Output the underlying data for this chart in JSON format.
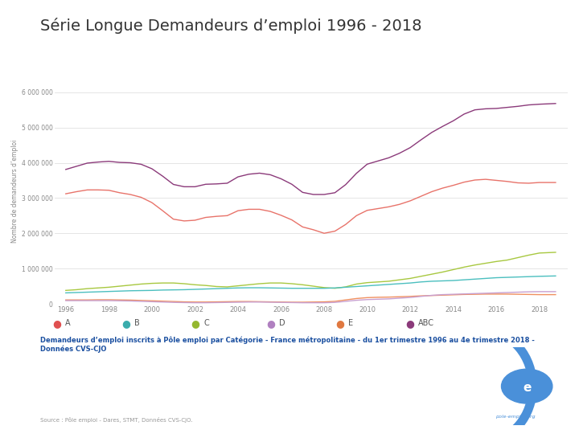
{
  "title": "Série Longue Demandeurs d’emploi 1996 - 2018",
  "ylabel": "Nombre de demandeurs d’emploi",
  "subtitle": "Demandeurs d’emploi inscrits à Pôle emploi par Catégorie - France métropolitaine - du 1er trimestre 1996 au 4e trimestre 2018 -\nDonnées CVS-CJO",
  "source": "Source : Pôle emploi - Dares, STMT, Données CVS-CJO.",
  "yticks": [
    0,
    1000000,
    2000000,
    3000000,
    4000000,
    5000000,
    6000000
  ],
  "ytick_labels": [
    "0",
    "1 000 000",
    "2 000 000",
    "3 000 000",
    "4 000 000",
    "5 000 000",
    "6 000 000"
  ],
  "xtick_years": [
    1996,
    1998,
    2000,
    2002,
    2004,
    2006,
    2008,
    2010,
    2012,
    2014,
    2016,
    2018
  ],
  "ylim": [
    0,
    6400000
  ],
  "series": {
    "A": {
      "color": "#E8736A",
      "data_x": [
        1996,
        1996.5,
        1997,
        1997.5,
        1998,
        1998.5,
        1999,
        1999.5,
        2000,
        2000.5,
        2001,
        2001.5,
        2002,
        2002.5,
        2003,
        2003.5,
        2004,
        2004.5,
        2005,
        2005.5,
        2006,
        2006.5,
        2007,
        2007.5,
        2008,
        2008.5,
        2009,
        2009.5,
        2010,
        2010.5,
        2011,
        2011.5,
        2012,
        2012.5,
        2013,
        2013.5,
        2014,
        2014.5,
        2015,
        2015.5,
        2016,
        2016.5,
        2017,
        2017.5,
        2018,
        2018.75
      ],
      "data_y": [
        3120000,
        3180000,
        3230000,
        3230000,
        3220000,
        3150000,
        3100000,
        3020000,
        2870000,
        2640000,
        2400000,
        2350000,
        2370000,
        2450000,
        2480000,
        2500000,
        2640000,
        2680000,
        2680000,
        2620000,
        2510000,
        2380000,
        2180000,
        2100000,
        2000000,
        2060000,
        2250000,
        2500000,
        2650000,
        2700000,
        2750000,
        2820000,
        2920000,
        3050000,
        3180000,
        3280000,
        3360000,
        3450000,
        3510000,
        3530000,
        3500000,
        3470000,
        3430000,
        3420000,
        3440000,
        3440000
      ]
    },
    "B": {
      "color": "#4BBFBF",
      "data_x": [
        1996,
        1996.5,
        1997,
        1997.5,
        1998,
        1998.5,
        1999,
        1999.5,
        2000,
        2000.5,
        2001,
        2001.5,
        2002,
        2002.5,
        2003,
        2003.5,
        2004,
        2004.5,
        2005,
        2005.5,
        2006,
        2006.5,
        2007,
        2007.5,
        2008,
        2008.5,
        2009,
        2009.5,
        2010,
        2010.5,
        2011,
        2011.5,
        2012,
        2012.5,
        2013,
        2013.5,
        2014,
        2014.5,
        2015,
        2015.5,
        2016,
        2016.5,
        2017,
        2017.5,
        2018,
        2018.75
      ],
      "data_y": [
        310000,
        320000,
        330000,
        340000,
        350000,
        360000,
        370000,
        375000,
        380000,
        390000,
        395000,
        400000,
        410000,
        420000,
        430000,
        440000,
        450000,
        455000,
        455000,
        450000,
        445000,
        440000,
        440000,
        440000,
        440000,
        450000,
        470000,
        490000,
        510000,
        530000,
        550000,
        570000,
        590000,
        620000,
        640000,
        650000,
        660000,
        680000,
        700000,
        720000,
        740000,
        750000,
        760000,
        770000,
        780000,
        790000
      ]
    },
    "C": {
      "color": "#A8C840",
      "data_x": [
        1996,
        1996.5,
        1997,
        1997.5,
        1998,
        1998.5,
        1999,
        1999.5,
        2000,
        2000.5,
        2001,
        2001.5,
        2002,
        2002.5,
        2003,
        2003.5,
        2004,
        2004.5,
        2005,
        2005.5,
        2006,
        2006.5,
        2007,
        2007.5,
        2008,
        2008.5,
        2009,
        2009.5,
        2010,
        2010.5,
        2011,
        2011.5,
        2012,
        2012.5,
        2013,
        2013.5,
        2014,
        2014.5,
        2015,
        2015.5,
        2016,
        2016.5,
        2017,
        2017.5,
        2018,
        2018.75
      ],
      "data_y": [
        380000,
        400000,
        430000,
        450000,
        470000,
        500000,
        530000,
        560000,
        580000,
        590000,
        590000,
        570000,
        540000,
        520000,
        490000,
        480000,
        510000,
        540000,
        570000,
        590000,
        590000,
        570000,
        540000,
        500000,
        460000,
        440000,
        480000,
        560000,
        600000,
        620000,
        640000,
        680000,
        720000,
        780000,
        840000,
        900000,
        970000,
        1040000,
        1100000,
        1150000,
        1200000,
        1240000,
        1310000,
        1380000,
        1440000,
        1460000
      ]
    },
    "D": {
      "color": "#C8A0D0",
      "data_x": [
        1996,
        1996.5,
        1997,
        1997.5,
        1998,
        1998.5,
        1999,
        1999.5,
        2000,
        2000.5,
        2001,
        2001.5,
        2002,
        2002.5,
        2003,
        2003.5,
        2004,
        2004.5,
        2005,
        2005.5,
        2006,
        2006.5,
        2007,
        2007.5,
        2008,
        2008.5,
        2009,
        2009.5,
        2010,
        2010.5,
        2011,
        2011.5,
        2012,
        2012.5,
        2013,
        2013.5,
        2014,
        2014.5,
        2015,
        2015.5,
        2016,
        2016.5,
        2017,
        2017.5,
        2018,
        2018.75
      ],
      "data_y": [
        90000,
        90000,
        90000,
        90000,
        90000,
        85000,
        80000,
        70000,
        60000,
        50000,
        40000,
        35000,
        30000,
        30000,
        35000,
        40000,
        45000,
        50000,
        50000,
        45000,
        40000,
        35000,
        30000,
        30000,
        30000,
        40000,
        70000,
        100000,
        120000,
        130000,
        140000,
        160000,
        180000,
        210000,
        240000,
        260000,
        270000,
        280000,
        290000,
        300000,
        310000,
        320000,
        330000,
        340000,
        345000,
        345000
      ]
    },
    "E": {
      "color": "#F09060",
      "data_x": [
        1996,
        1996.5,
        1997,
        1997.5,
        1998,
        1998.5,
        1999,
        1999.5,
        2000,
        2000.5,
        2001,
        2001.5,
        2002,
        2002.5,
        2003,
        2003.5,
        2004,
        2004.5,
        2005,
        2005.5,
        2006,
        2006.5,
        2007,
        2007.5,
        2008,
        2008.5,
        2009,
        2009.5,
        2010,
        2010.5,
        2011,
        2011.5,
        2012,
        2012.5,
        2013,
        2013.5,
        2014,
        2014.5,
        2015,
        2015.5,
        2016,
        2016.5,
        2017,
        2017.5,
        2018,
        2018.75
      ],
      "data_y": [
        110000,
        110000,
        110000,
        115000,
        115000,
        110000,
        105000,
        95000,
        85000,
        75000,
        65000,
        55000,
        50000,
        50000,
        55000,
        60000,
        65000,
        65000,
        60000,
        55000,
        50000,
        45000,
        45000,
        50000,
        55000,
        70000,
        110000,
        150000,
        175000,
        185000,
        190000,
        200000,
        210000,
        225000,
        235000,
        245000,
        255000,
        265000,
        270000,
        275000,
        275000,
        275000,
        270000,
        265000,
        260000,
        260000
      ]
    },
    "ABC": {
      "color": "#8B3A7A",
      "data_x": [
        1996,
        1996.5,
        1997,
        1997.5,
        1998,
        1998.5,
        1999,
        1999.5,
        2000,
        2000.5,
        2001,
        2001.5,
        2002,
        2002.5,
        2003,
        2003.5,
        2004,
        2004.5,
        2005,
        2005.5,
        2006,
        2006.5,
        2007,
        2007.5,
        2008,
        2008.5,
        2009,
        2009.5,
        2010,
        2010.5,
        2011,
        2011.5,
        2012,
        2012.5,
        2013,
        2013.5,
        2014,
        2014.5,
        2015,
        2015.5,
        2016,
        2016.5,
        2017,
        2017.5,
        2018,
        2018.75
      ],
      "data_y": [
        3810000,
        3900000,
        3990000,
        4020000,
        4040000,
        4010000,
        4000000,
        3957000,
        3830000,
        3620000,
        3385000,
        3320000,
        3320000,
        3390000,
        3400000,
        3420000,
        3600000,
        3675000,
        3705000,
        3660000,
        3545000,
        3390000,
        3160000,
        3100000,
        3100000,
        3150000,
        3380000,
        3700000,
        3960000,
        4050000,
        4140000,
        4270000,
        4430000,
        4650000,
        4860000,
        5030000,
        5190000,
        5380000,
        5500000,
        5530000,
        5540000,
        5570000,
        5600000,
        5640000,
        5660000,
        5680000
      ]
    }
  },
  "legend_labels": [
    "A",
    "B",
    "C",
    "D",
    "E",
    "ABC"
  ],
  "legend_colors": [
    "#E05050",
    "#3AACAC",
    "#95B830",
    "#B080C0",
    "#E07840",
    "#8B3A7A"
  ],
  "background_color": "#FFFFFF",
  "grid_color": "#E0E0E0"
}
